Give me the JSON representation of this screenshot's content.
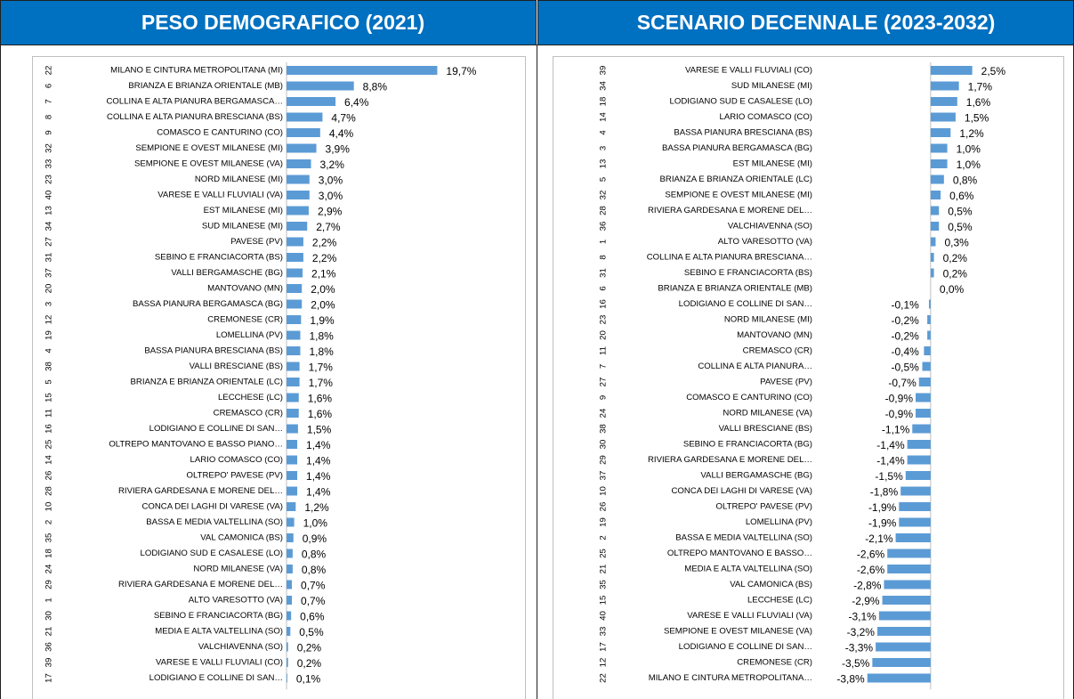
{
  "chart_data": [
    {
      "type": "bar",
      "orientation": "horizontal",
      "title": "PESO DEMOGRAFICO (2021)",
      "color": "#5b9bd5",
      "codes": [
        "22",
        "6",
        "7",
        "8",
        "9",
        "32",
        "33",
        "23",
        "40",
        "13",
        "34",
        "27",
        "31",
        "37",
        "20",
        "3",
        "12",
        "19",
        "4",
        "38",
        "5",
        "15",
        "11",
        "16",
        "25",
        "14",
        "26",
        "28",
        "10",
        "2",
        "35",
        "18",
        "24",
        "29",
        "1",
        "30",
        "21",
        "36",
        "39",
        "17"
      ],
      "categories": [
        "MILANO E CINTURA METROPOLITANA (MI)",
        "BRIANZA E BRIANZA ORIENTALE (MB)",
        "COLLINA E ALTA PIANURA BERGAMASCA…",
        "COLLINA E ALTA PIANURA BRESCIANA (BS)",
        "COMASCO E CANTURINO (CO)",
        "SEMPIONE E OVEST MILANESE (MI)",
        "SEMPIONE E OVEST MILANESE (VA)",
        "NORD MILANESE (MI)",
        "VARESE E VALLI FLUVIALI (VA)",
        "EST MILANESE (MI)",
        "SUD MILANESE (MI)",
        "PAVESE (PV)",
        "SEBINO E FRANCIACORTA (BS)",
        "VALLI BERGAMASCHE (BG)",
        "MANTOVANO (MN)",
        "BASSA PIANURA BERGAMASCA (BG)",
        "CREMONESE (CR)",
        "LOMELLINA (PV)",
        "BASSA PIANURA BRESCIANA (BS)",
        "VALLI BRESCIANE (BS)",
        "BRIANZA E BRIANZA ORIENTALE (LC)",
        "LECCHESE (LC)",
        "CREMASCO (CR)",
        "LODIGIANO E COLLINE DI SAN…",
        "OLTREPO MANTOVANO E BASSO PIANO…",
        "LARIO COMASCO (CO)",
        "OLTREPO' PAVESE (PV)",
        "RIVIERA GARDESANA E MORENE DEL…",
        "CONCA DEI LAGHI DI VARESE (VA)",
        "BASSA E MEDIA VALTELLINA (SO)",
        "VAL CAMONICA (BS)",
        "LODIGIANO SUD E CASALESE (LO)",
        "NORD MILANESE (VA)",
        "RIVIERA GARDESANA E MORENE DEL…",
        "ALTO VARESOTTO (VA)",
        "SEBINO E FRANCIACORTA (BG)",
        "MEDIA E ALTA VALTELLINA (SO)",
        "VALCHIAVENNA (SO)",
        "VARESE E VALLI FLUVIALI (CO)",
        "LODIGIANO E COLLINE DI SAN…"
      ],
      "values": [
        19.7,
        8.8,
        6.4,
        4.7,
        4.4,
        3.9,
        3.2,
        3.0,
        3.0,
        2.9,
        2.7,
        2.2,
        2.2,
        2.1,
        2.0,
        2.0,
        1.9,
        1.8,
        1.8,
        1.7,
        1.7,
        1.6,
        1.6,
        1.5,
        1.4,
        1.4,
        1.4,
        1.4,
        1.2,
        1.0,
        0.9,
        0.8,
        0.8,
        0.7,
        0.7,
        0.6,
        0.5,
        0.2,
        0.2,
        0.1
      ],
      "value_labels": [
        "19,7%",
        "8,8%",
        "6,4%",
        "4,7%",
        "4,4%",
        "3,9%",
        "3,2%",
        "3,0%",
        "3,0%",
        "2,9%",
        "2,7%",
        "2,2%",
        "2,2%",
        "2,1%",
        "2,0%",
        "2,0%",
        "1,9%",
        "1,8%",
        "1,8%",
        "1,7%",
        "1,7%",
        "1,6%",
        "1,6%",
        "1,5%",
        "1,4%",
        "1,4%",
        "1,4%",
        "1,4%",
        "1,2%",
        "1,0%",
        "0,9%",
        "0,8%",
        "0,8%",
        "0,7%",
        "0,7%",
        "0,6%",
        "0,5%",
        "0,2%",
        "0,2%",
        "0,1%"
      ],
      "xlim": [
        0,
        20
      ]
    },
    {
      "type": "bar",
      "orientation": "horizontal",
      "title": "SCENARIO DECENNALE (2023-2032)",
      "color": "#5b9bd5",
      "codes": [
        "39",
        "34",
        "18",
        "14",
        "4",
        "3",
        "13",
        "5",
        "32",
        "28",
        "36",
        "1",
        "8",
        "31",
        "6",
        "16",
        "23",
        "20",
        "11",
        "7",
        "27",
        "9",
        "24",
        "38",
        "30",
        "29",
        "37",
        "10",
        "26",
        "19",
        "2",
        "25",
        "21",
        "35",
        "15",
        "40",
        "33",
        "17",
        "12",
        "22"
      ],
      "categories": [
        "VARESE E VALLI FLUVIALI (CO)",
        "SUD MILANESE (MI)",
        "LODIGIANO SUD E CASALESE (LO)",
        "LARIO COMASCO (CO)",
        "BASSA PIANURA BRESCIANA (BS)",
        "BASSA PIANURA BERGAMASCA (BG)",
        "EST MILANESE (MI)",
        "BRIANZA E BRIANZA ORIENTALE (LC)",
        "SEMPIONE E OVEST MILANESE (MI)",
        "RIVIERA GARDESANA E MORENE DEL…",
        "VALCHIAVENNA (SO)",
        "ALTO VARESOTTO (VA)",
        "COLLINA E ALTA PIANURA BRESCIANA…",
        "SEBINO E FRANCIACORTA (BS)",
        "BRIANZA E BRIANZA ORIENTALE (MB)",
        "LODIGIANO E COLLINE DI SAN…",
        "NORD MILANESE (MI)",
        "MANTOVANO (MN)",
        "CREMASCO (CR)",
        "COLLINA E ALTA PIANURA…",
        "PAVESE (PV)",
        "COMASCO E CANTURINO (CO)",
        "NORD MILANESE (VA)",
        "VALLI BRESCIANE (BS)",
        "SEBINO E FRANCIACORTA (BG)",
        "RIVIERA GARDESANA E MORENE DEL…",
        "VALLI BERGAMASCHE (BG)",
        "CONCA DEI LAGHI DI VARESE (VA)",
        "OLTREPO' PAVESE (PV)",
        "LOMELLINA (PV)",
        "BASSA E MEDIA VALTELLINA (SO)",
        "OLTREPO MANTOVANO E BASSO…",
        "MEDIA E ALTA VALTELLINA (SO)",
        "VAL CAMONICA (BS)",
        "LECCHESE (LC)",
        "VARESE E VALLI FLUVIALI (VA)",
        "SEMPIONE E OVEST MILANESE (VA)",
        "LODIGIANO E COLLINE DI SAN…",
        "CREMONESE (CR)",
        "MILANO E CINTURA METROPOLITANA…"
      ],
      "values": [
        2.5,
        1.7,
        1.6,
        1.5,
        1.2,
        1.0,
        1.0,
        0.8,
        0.6,
        0.5,
        0.5,
        0.3,
        0.2,
        0.2,
        0.0,
        -0.1,
        -0.2,
        -0.2,
        -0.4,
        -0.5,
        -0.7,
        -0.9,
        -0.9,
        -1.1,
        -1.4,
        -1.4,
        -1.5,
        -1.8,
        -1.9,
        -1.9,
        -2.1,
        -2.6,
        -2.6,
        -2.8,
        -2.9,
        -3.1,
        -3.2,
        -3.3,
        -3.5,
        -3.8
      ],
      "value_labels": [
        "2,5%",
        "1,7%",
        "1,6%",
        "1,5%",
        "1,2%",
        "1,0%",
        "1,0%",
        "0,8%",
        "0,6%",
        "0,5%",
        "0,5%",
        "0,3%",
        "0,2%",
        "0,2%",
        "0,0%",
        "-0,1%",
        "-0,2%",
        "-0,2%",
        "-0,4%",
        "-0,5%",
        "-0,7%",
        "-0,9%",
        "-0,9%",
        "-1,1%",
        "-1,4%",
        "-1,4%",
        "-1,5%",
        "-1,8%",
        "-1,9%",
        "-1,9%",
        "-2,1%",
        "-2,6%",
        "-2,6%",
        "-2,8%",
        "-2,9%",
        "-3,1%",
        "-3,2%",
        "-3,3%",
        "-3,5%",
        "-3,8%"
      ],
      "xlim": [
        -4,
        3
      ]
    }
  ]
}
